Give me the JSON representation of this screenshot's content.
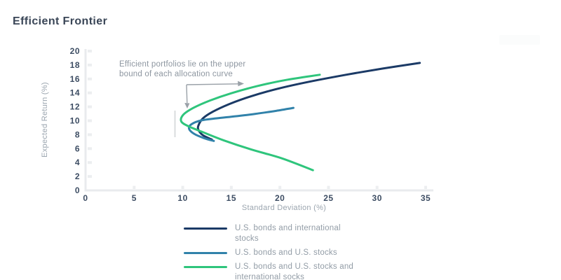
{
  "title": "Efficient Frontier",
  "annotation": {
    "line1": "Efficient portfolios lie on the upper",
    "line2": "bound of each allocation curve"
  },
  "axes": {
    "x": {
      "label": "Standard Deviation (%)",
      "ticks": [
        0,
        5,
        10,
        15,
        20,
        25,
        30,
        35
      ],
      "min": 0,
      "max": 35
    },
    "y": {
      "label": "Expected Return (%)",
      "ticks": [
        0,
        2,
        4,
        6,
        8,
        10,
        12,
        14,
        16,
        18,
        20
      ],
      "min": 0,
      "max": 20
    }
  },
  "legend": [
    {
      "label": "U.S. bonds and international stocks",
      "color": "#1b3a66"
    },
    {
      "label": "U.S. bonds and U.S. stocks",
      "color": "#3182aa"
    },
    {
      "label": "U.S. bonds and U.S. stocks and international socks",
      "color": "#2fc57c"
    }
  ],
  "colors": {
    "navy": "#1b3a66",
    "teal": "#3182aa",
    "green": "#2fc57c",
    "axis_line": "#e9ebee",
    "tick_mark": "#eceef0",
    "tick_label": "#3d4d63",
    "axis_title": "#9ba5af",
    "annotation_text": "#8d96a0",
    "arrow": "#9aa1a8",
    "marker_line": "#dadcde",
    "title": "#3a4657"
  },
  "chart_data": {
    "type": "line",
    "title": "Efficient Frontier",
    "xlabel": "Standard Deviation (%)",
    "ylabel": "Expected Return (%)",
    "xlim": [
      0,
      35
    ],
    "ylim": [
      0,
      20
    ],
    "grid": false,
    "legend_position": "bottom",
    "annotation": "Efficient portfolios lie on the upper bound of each allocation curve",
    "series": [
      {
        "name": "U.S. bonds and international stocks",
        "color": "#1b3a66",
        "points": [
          [
            13.0,
            7.3
          ],
          [
            12.1,
            7.9
          ],
          [
            11.65,
            8.6
          ],
          [
            11.6,
            9.25
          ],
          [
            12.05,
            10.3
          ],
          [
            13.1,
            11.3
          ],
          [
            14.8,
            12.4
          ],
          [
            17.0,
            13.5
          ],
          [
            19.8,
            14.6
          ],
          [
            23.0,
            15.6
          ],
          [
            26.8,
            16.6
          ],
          [
            30.6,
            17.5
          ],
          [
            34.4,
            18.3
          ]
        ]
      },
      {
        "name": "U.S. bonds and U.S. stocks",
        "color": "#3182aa",
        "points": [
          [
            13.2,
            7.1
          ],
          [
            12.2,
            7.5
          ],
          [
            11.2,
            8.1
          ],
          [
            10.65,
            8.85
          ],
          [
            10.9,
            9.5
          ],
          [
            11.9,
            10.05
          ],
          [
            13.5,
            10.35
          ],
          [
            15.5,
            10.65
          ],
          [
            17.5,
            11.0
          ],
          [
            19.5,
            11.4
          ],
          [
            21.4,
            11.85
          ]
        ]
      },
      {
        "name": "U.S. bonds and U.S. stocks and international socks",
        "color": "#2fc57c",
        "points": [
          [
            23.4,
            2.9
          ],
          [
            20.2,
            4.6
          ],
          [
            17.0,
            5.9
          ],
          [
            14.2,
            7.2
          ],
          [
            12.0,
            8.4
          ],
          [
            10.6,
            9.2
          ],
          [
            9.85,
            9.9
          ],
          [
            10.05,
            10.85
          ],
          [
            11.1,
            11.85
          ],
          [
            12.8,
            12.9
          ],
          [
            15.0,
            13.95
          ],
          [
            17.6,
            14.95
          ],
          [
            20.6,
            15.85
          ],
          [
            24.1,
            16.6
          ]
        ]
      }
    ]
  }
}
